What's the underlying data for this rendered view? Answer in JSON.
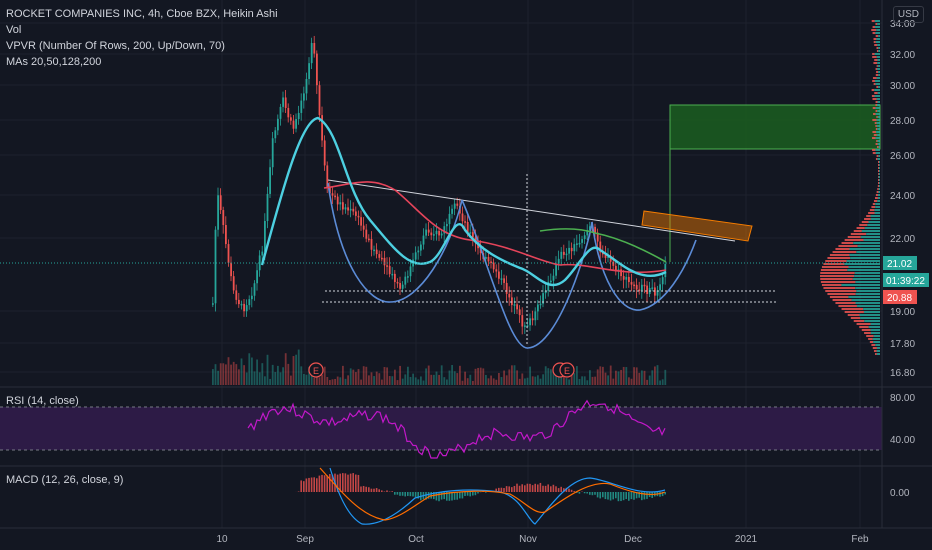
{
  "header": {
    "title": "ROCKET COMPANIES INC, 4h, Cboe BZX, Heikin Ashi",
    "vol": "Vol",
    "vpvr": "VPVR (Number Of Rows, 200, Up/Down, 70)",
    "mas": "MAs 20,50,128,200"
  },
  "currency_button": "USD",
  "colors": {
    "background": "#131722",
    "up": "#26a69a",
    "down": "#ef5350",
    "ma_cyan": "#4dd0e1",
    "ma_red": "#e5445a",
    "ma_green": "#4caf50",
    "trend_white": "#d1d4dc",
    "cup_blue": "#5b8bd6",
    "rsi_purple": "#c218c9",
    "rsi_band": "#2d1b46",
    "macd_blue": "#2196f3",
    "macd_orange": "#ff6d00",
    "target_green": "#1b5e20",
    "zone_orange": "#f57c00"
  },
  "rsi": {
    "label": "RSI (14, close)",
    "ticks": [
      "80.00",
      "40.00"
    ]
  },
  "macd": {
    "label": "MACD (12, 26, close, 9)",
    "ticks": [
      "0.00"
    ]
  },
  "price_axis": {
    "ticks": [
      "34.00",
      "32.00",
      "30.00",
      "28.00",
      "26.00",
      "24.00",
      "22.00",
      "19.00",
      "17.80",
      "16.80"
    ],
    "badges": [
      {
        "text": "21.02",
        "color": "#26a69a"
      },
      {
        "text": "01:39:22",
        "color": "#26a69a"
      },
      {
        "text": "20.88",
        "color": "#ef5350"
      }
    ]
  },
  "time_axis": {
    "ticks": [
      "10",
      "Sep",
      "Oct",
      "Nov",
      "Dec",
      "2021",
      "Feb"
    ]
  },
  "earnings_markers": [
    "E",
    "E"
  ],
  "chart_data": {
    "type": "candlestick",
    "title": "ROCKET COMPANIES INC, 4h, Cboe BZX, Heikin Ashi",
    "y_unit": "USD",
    "ylim": [
      16.8,
      34.5
    ],
    "last_price": 21.02,
    "previous_close": 20.88,
    "series": [
      {
        "name": "MA 20",
        "color": "#4dd0e1"
      },
      {
        "name": "MA 50",
        "color": "#e5445a"
      },
      {
        "name": "MA 128",
        "color": "#4caf50"
      }
    ],
    "annotations": {
      "descending_trendline": [
        25.0,
        22.0
      ],
      "target_zone": [
        26.5,
        29.0
      ],
      "resistance_zone": [
        22.3,
        23.2
      ],
      "support_lines": [
        20.6,
        20.1
      ]
    }
  }
}
